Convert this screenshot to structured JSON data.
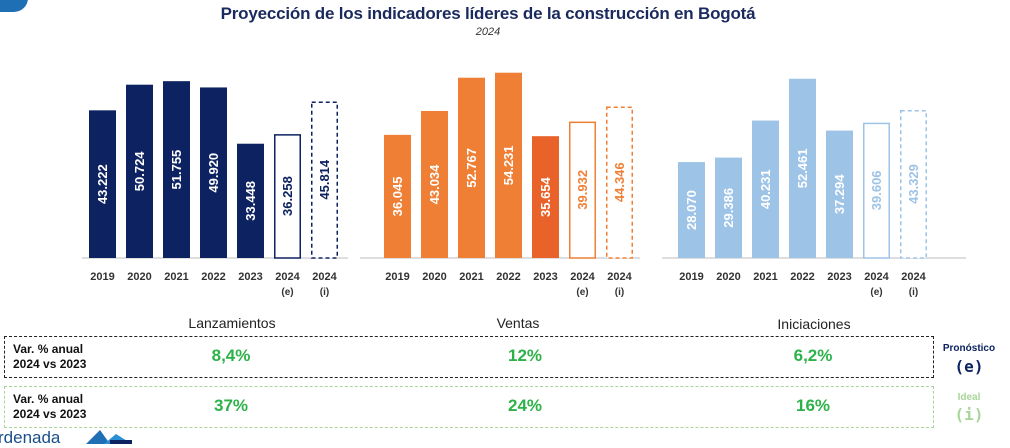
{
  "title": "Proyección de los indicadores líderes de la construcción en Bogotá",
  "subtitle": "2024",
  "chart_data": [
    {
      "type": "bar",
      "title": "Lanzamientos",
      "categories": [
        "2019",
        "2020",
        "2021",
        "2022",
        "2023",
        "2024\n(e)",
        "2024\n(i)"
      ],
      "values": [
        43222,
        50724,
        51755,
        49920,
        33448,
        36258,
        45814
      ],
      "value_labels": [
        "43.222",
        "50.724",
        "51.755",
        "49.920",
        "33.448",
        "36.258",
        "45.814"
      ],
      "styles": [
        "solid",
        "solid",
        "solid",
        "solid",
        "solid",
        "outline",
        "dashed"
      ],
      "color": "#0d2260",
      "ylim": [
        0,
        60000
      ]
    },
    {
      "type": "bar",
      "title": "Ventas",
      "categories": [
        "2019",
        "2020",
        "2021",
        "2022",
        "2023",
        "2024\n(e)",
        "2024\n(i)"
      ],
      "values": [
        36045,
        43034,
        52767,
        54231,
        35654,
        39932,
        44346
      ],
      "value_labels": [
        "36.045",
        "43.034",
        "52.767",
        "54.231",
        "35.654",
        "39.932",
        "44.346"
      ],
      "styles": [
        "solid",
        "solid",
        "solid",
        "solid",
        "solid",
        "outline",
        "dashed"
      ],
      "color": "#ef7f35",
      "ylim": [
        0,
        60000
      ]
    },
    {
      "type": "bar",
      "title": "Iniciaciones",
      "categories": [
        "2019",
        "2020",
        "2021",
        "2022",
        "2023",
        "2024\n(e)",
        "2024\n(i)"
      ],
      "values": [
        28070,
        29386,
        40231,
        52461,
        37294,
        39606,
        43329
      ],
      "value_labels": [
        "28.070",
        "29.386",
        "40.231",
        "52.461",
        "37.294",
        "39.606",
        "43.329"
      ],
      "styles": [
        "solid",
        "solid",
        "solid",
        "solid",
        "solid",
        "outline",
        "dashed"
      ],
      "color": "#9dc3e6",
      "ylim": [
        0,
        60000
      ]
    }
  ],
  "panels": [
    "Lanzamientos",
    "Ventas",
    "Iniciaciones"
  ],
  "rows": [
    {
      "label_line1": "Var. % anual",
      "label_line2": "2024 vs 2023",
      "values": [
        "8,4%",
        "12%",
        "6,2%"
      ],
      "legend_title": "Pronóstico",
      "legend_code": "(e)"
    },
    {
      "label_line1": "Var. % anual",
      "label_line2": "2024 vs 2023",
      "values": [
        "37%",
        "24%",
        "16%"
      ],
      "legend_title": "Ideal",
      "legend_code": "(i)"
    }
  ],
  "footer": {
    "text": "rdenada"
  },
  "colors": {
    "navy": "#0d2260",
    "orange": "#ef7f35",
    "orange_2023": "#e8622a",
    "lightblue": "#9dc3e6",
    "green": "#2db24a",
    "green_light": "#a8d59a",
    "title": "#1a2a5e"
  }
}
